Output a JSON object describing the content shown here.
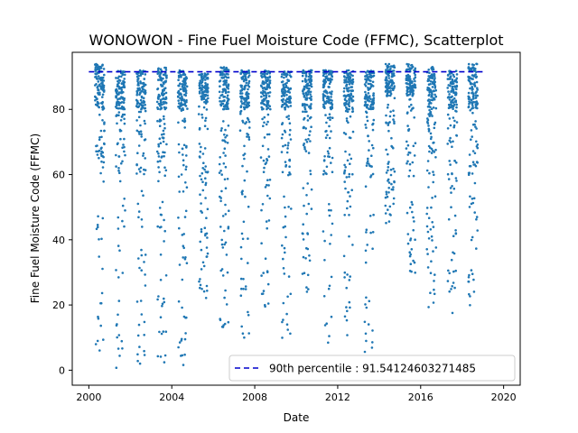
{
  "chart_data": {
    "type": "scatter",
    "title": "WONOWON - Fine Fuel Moisture Code (FFMC), Scatterplot",
    "xlabel": "Date",
    "ylabel": "Fine Fuel Moisture Code (FFMC)",
    "xlim": [
      1999.2,
      2020.8
    ],
    "ylim": [
      -4.6,
      97.5
    ],
    "x_ticks": [
      2000,
      2004,
      2008,
      2012,
      2016,
      2020
    ],
    "x_tick_labels": [
      "2000",
      "2004",
      "2008",
      "2012",
      "2016",
      "2020"
    ],
    "y_ticks": [
      0,
      20,
      40,
      60,
      80
    ],
    "y_tick_labels": [
      "0",
      "20",
      "40",
      "60",
      "80"
    ],
    "grid": false,
    "legend_position": "lower right",
    "point_color": "#1f77b4",
    "reference_line": {
      "label": "90th percentile : 91.54124603271485",
      "y": 91.54124603271485,
      "color": "#0000cc",
      "style": "dashed"
    },
    "seasons": [
      {
        "year": 2000,
        "x_range": [
          2000.3,
          2000.75
        ],
        "dense_range": [
          80,
          94
        ],
        "min": 3
      },
      {
        "year": 2001,
        "x_range": [
          2001.3,
          2001.75
        ],
        "dense_range": [
          80,
          92
        ],
        "min": 0
      },
      {
        "year": 2002,
        "x_range": [
          2002.3,
          2002.75
        ],
        "dense_range": [
          80,
          92
        ],
        "min": 0
      },
      {
        "year": 2003,
        "x_range": [
          2003.3,
          2003.75
        ],
        "dense_range": [
          80,
          93
        ],
        "min": 0
      },
      {
        "year": 2004,
        "x_range": [
          2004.3,
          2004.75
        ],
        "dense_range": [
          80,
          92
        ],
        "min": 0
      },
      {
        "year": 2005,
        "x_range": [
          2005.3,
          2005.75
        ],
        "dense_range": [
          82,
          91
        ],
        "min": 22
      },
      {
        "year": 2006,
        "x_range": [
          2006.3,
          2006.75
        ],
        "dense_range": [
          80,
          93
        ],
        "min": 13
      },
      {
        "year": 2007,
        "x_range": [
          2007.3,
          2007.75
        ],
        "dense_range": [
          80,
          92
        ],
        "min": 7
      },
      {
        "year": 2008,
        "x_range": [
          2008.3,
          2008.75
        ],
        "dense_range": [
          80,
          92
        ],
        "min": 18
      },
      {
        "year": 2009,
        "x_range": [
          2009.3,
          2009.75
        ],
        "dense_range": [
          80,
          92
        ],
        "min": 6
      },
      {
        "year": 2010,
        "x_range": [
          2010.3,
          2010.75
        ],
        "dense_range": [
          80,
          92
        ],
        "min": 23
      },
      {
        "year": 2011,
        "x_range": [
          2011.3,
          2011.75
        ],
        "dense_range": [
          80,
          92
        ],
        "min": 8
      },
      {
        "year": 2012,
        "x_range": [
          2012.3,
          2012.75
        ],
        "dense_range": [
          80,
          92
        ],
        "min": 8
      },
      {
        "year": 2013,
        "x_range": [
          2013.3,
          2013.75
        ],
        "dense_range": [
          80,
          92
        ],
        "min": 4
      },
      {
        "year": 2014,
        "x_range": [
          2014.3,
          2014.75
        ],
        "dense_range": [
          84,
          94
        ],
        "min": 45
      },
      {
        "year": 2015,
        "x_range": [
          2015.3,
          2015.75
        ],
        "dense_range": [
          84,
          94
        ],
        "min": 29
      },
      {
        "year": 2016,
        "x_range": [
          2016.3,
          2016.75
        ],
        "dense_range": [
          80,
          93
        ],
        "min": 14
      },
      {
        "year": 2017,
        "x_range": [
          2017.3,
          2017.75
        ],
        "dense_range": [
          80,
          92
        ],
        "min": 15
      },
      {
        "year": 2018,
        "x_range": [
          2018.3,
          2018.75
        ],
        "dense_range": [
          80,
          94
        ],
        "min": 18
      }
    ]
  }
}
